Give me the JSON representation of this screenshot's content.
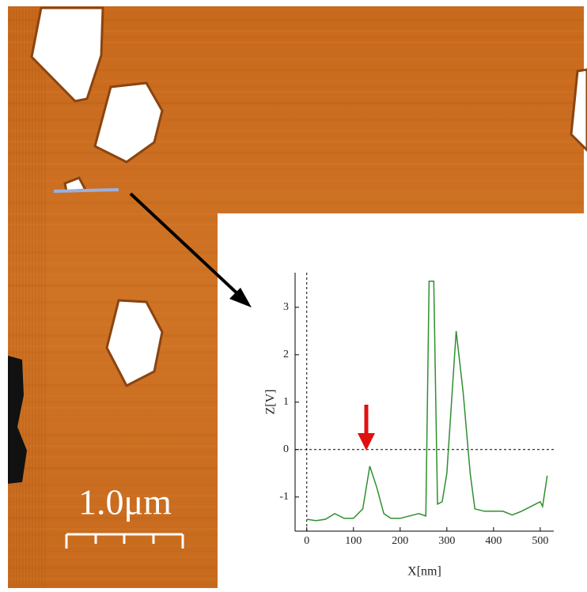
{
  "image": {
    "scale_bar": "1.0μm"
  },
  "chart_data": {
    "type": "line",
    "xlabel": "X[nm]",
    "ylabel": "Z[V]",
    "x": [
      0,
      20,
      40,
      60,
      80,
      100,
      120,
      135,
      150,
      165,
      180,
      200,
      220,
      240,
      255,
      262,
      272,
      280,
      290,
      300,
      320,
      335,
      350,
      360,
      380,
      400,
      420,
      440,
      460,
      480,
      500,
      505,
      515
    ],
    "series": [
      {
        "color": "#2f8f2f",
        "values": [
          -1.47,
          -1.5,
          -1.47,
          -1.35,
          -1.45,
          -1.45,
          -1.25,
          -0.35,
          -0.8,
          -1.35,
          -1.45,
          -1.45,
          -1.4,
          -1.35,
          -1.4,
          3.55,
          3.55,
          -1.15,
          -1.1,
          -0.5,
          2.5,
          1.2,
          -0.5,
          -1.25,
          -1.3,
          -1.3,
          -1.3,
          -1.38,
          -1.3,
          -1.2,
          -1.1,
          -1.2,
          -0.55
        ]
      }
    ],
    "xlim": [
      -25,
      529
    ],
    "ylim": [
      -1.72,
      3.73
    ],
    "xticks": [
      0,
      100,
      200,
      300,
      400,
      500
    ],
    "yticks": [
      -1,
      0,
      1,
      2,
      3
    ],
    "zero_lines": true
  }
}
